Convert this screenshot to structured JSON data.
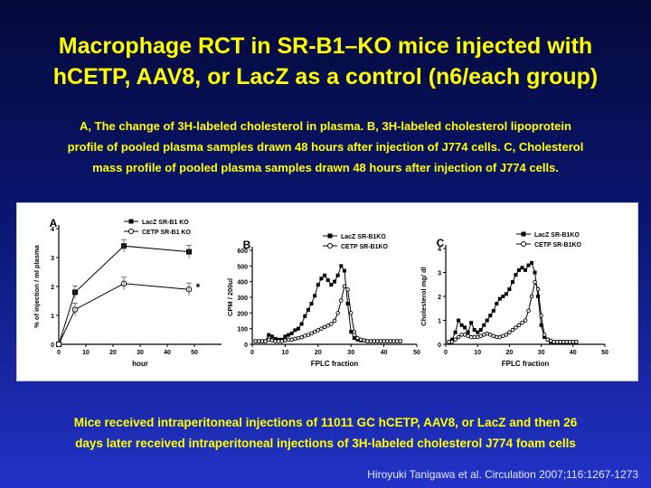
{
  "title_line1": "Macrophage RCT in SR-B1–KO mice injected with",
  "title_line2": "hCETP, AAV8, or LacZ as a control (n6/each group)",
  "subtitle_line1": "A, The change of 3H-labeled cholesterol in plasma. B, 3H-labeled cholesterol lipoprotein",
  "subtitle_line2": "profile of pooled plasma samples drawn 48 hours after injection of J774 cells. C, Cholesterol",
  "subtitle_line3": "mass profile of pooled plasma samples drawn 48 hours after injection of J774 cells.",
  "footer_line1": "Mice received intraperitoneal injections of 11011 GC hCETP, AAV8, or LacZ and then 26",
  "footer_line2": "days later received intraperitoneal injections of 3H-labeled cholesterol J774 foam cells",
  "citation": "Hiroyuki Tanigawa et al. Circulation 2007;116:1267-1273",
  "chart_data": [
    {
      "type": "line",
      "panel_letter": "A",
      "xlabel": "hour",
      "ylabel": "% of injection / ml plasma",
      "xlim": [
        0,
        60
      ],
      "ylim": [
        0,
        4
      ],
      "xticks": [
        0,
        10,
        20,
        30,
        40,
        50
      ],
      "yticks": [
        0,
        1,
        2,
        3,
        4
      ],
      "legend_position": "top-right",
      "annotation": "*",
      "series": [
        {
          "name": "LacZ SR-B1 KO",
          "marker": "filled-square",
          "x": [
            0,
            6,
            24,
            48
          ],
          "y": [
            0.0,
            1.8,
            3.4,
            3.2
          ]
        },
        {
          "name": "CETP SR-B1 KO",
          "marker": "open-circle",
          "x": [
            0,
            6,
            24,
            48
          ],
          "y": [
            0.0,
            1.2,
            2.1,
            1.9
          ]
        }
      ]
    },
    {
      "type": "line",
      "panel_letter": "B",
      "xlabel": "FPLC fraction",
      "ylabel": "CPM / 200ul",
      "xlim": [
        0,
        50
      ],
      "ylim": [
        0,
        600
      ],
      "xticks": [
        0,
        10,
        20,
        30,
        40,
        50
      ],
      "yticks": [
        0,
        100,
        200,
        300,
        400,
        500,
        600
      ],
      "legend_position": "top-right",
      "series": [
        {
          "name": "LacZ SR-B1KO",
          "marker": "filled-square",
          "x": [
            1,
            2,
            3,
            4,
            5,
            6,
            7,
            8,
            9,
            10,
            11,
            12,
            13,
            14,
            15,
            16,
            17,
            18,
            19,
            20,
            21,
            22,
            23,
            24,
            25,
            26,
            27,
            28,
            29,
            30,
            31,
            32,
            33,
            34,
            35,
            36,
            37,
            38,
            39,
            40,
            41,
            42,
            43,
            44,
            45
          ],
          "y": [
            20,
            20,
            20,
            20,
            60,
            50,
            35,
            30,
            30,
            50,
            60,
            70,
            90,
            100,
            130,
            180,
            220,
            260,
            310,
            380,
            420,
            440,
            410,
            380,
            400,
            440,
            500,
            470,
            260,
            80,
            40,
            30,
            25,
            25,
            20,
            20,
            20,
            20,
            20,
            20,
            20,
            20,
            20,
            20,
            20
          ]
        },
        {
          "name": "CETP SR-B1KO",
          "marker": "open-circle",
          "x": [
            1,
            2,
            3,
            4,
            5,
            6,
            7,
            8,
            9,
            10,
            11,
            12,
            13,
            14,
            15,
            16,
            17,
            18,
            19,
            20,
            21,
            22,
            23,
            24,
            25,
            26,
            27,
            28,
            29,
            30,
            31,
            32,
            33,
            34,
            35,
            36,
            37,
            38,
            39,
            40,
            41,
            42,
            43,
            44,
            45
          ],
          "y": [
            20,
            20,
            20,
            20,
            30,
            25,
            20,
            20,
            20,
            25,
            30,
            30,
            35,
            40,
            45,
            55,
            60,
            70,
            80,
            90,
            100,
            110,
            120,
            130,
            150,
            200,
            280,
            370,
            350,
            200,
            80,
            40,
            30,
            25,
            20,
            20,
            20,
            20,
            20,
            20,
            20,
            20,
            20,
            20,
            20
          ]
        }
      ]
    },
    {
      "type": "line",
      "panel_letter": "C",
      "xlabel": "FPLC fraction",
      "ylabel": "Cholesterol mg/ dl",
      "xlim": [
        0,
        50
      ],
      "ylim": [
        0,
        4
      ],
      "xticks": [
        0,
        10,
        20,
        30,
        40,
        50
      ],
      "yticks": [
        0,
        1,
        2,
        3,
        4
      ],
      "legend_position": "top-right",
      "series": [
        {
          "name": "LacZ SR-B1KO",
          "marker": "filled-square",
          "x": [
            1,
            2,
            3,
            4,
            5,
            6,
            7,
            8,
            9,
            10,
            11,
            12,
            13,
            14,
            15,
            16,
            17,
            18,
            19,
            20,
            21,
            22,
            23,
            24,
            25,
            26,
            27,
            28,
            29,
            30,
            31,
            32,
            33,
            34,
            35,
            36,
            37,
            38,
            39,
            40,
            41
          ],
          "y": [
            0.1,
            0.2,
            0.5,
            1.0,
            0.8,
            0.7,
            0.5,
            0.9,
            0.6,
            0.5,
            0.6,
            0.8,
            1.0,
            1.2,
            1.4,
            1.7,
            1.9,
            2.0,
            2.1,
            2.3,
            2.6,
            2.9,
            3.1,
            3.2,
            3.1,
            3.3,
            3.4,
            3.0,
            2.0,
            0.8,
            0.3,
            0.2,
            0.1,
            0.1,
            0.1,
            0.1,
            0.1,
            0.1,
            0.1,
            0.1,
            0.1
          ]
        },
        {
          "name": "CETP SR-B1KO",
          "marker": "open-circle",
          "x": [
            1,
            2,
            3,
            4,
            5,
            6,
            7,
            8,
            9,
            10,
            11,
            12,
            13,
            14,
            15,
            16,
            17,
            18,
            19,
            20,
            21,
            22,
            23,
            24,
            25,
            26,
            27,
            28,
            29,
            30,
            31,
            32,
            33,
            34,
            35,
            36,
            37,
            38,
            39,
            40,
            41
          ],
          "y": [
            0.1,
            0.1,
            0.2,
            0.3,
            0.4,
            0.4,
            0.35,
            0.3,
            0.3,
            0.3,
            0.35,
            0.4,
            0.45,
            0.4,
            0.35,
            0.3,
            0.3,
            0.35,
            0.4,
            0.5,
            0.6,
            0.7,
            0.8,
            0.9,
            1.0,
            1.4,
            2.0,
            2.6,
            2.3,
            1.2,
            0.4,
            0.2,
            0.15,
            0.1,
            0.1,
            0.1,
            0.1,
            0.1,
            0.1,
            0.1,
            0.1
          ]
        }
      ]
    }
  ]
}
